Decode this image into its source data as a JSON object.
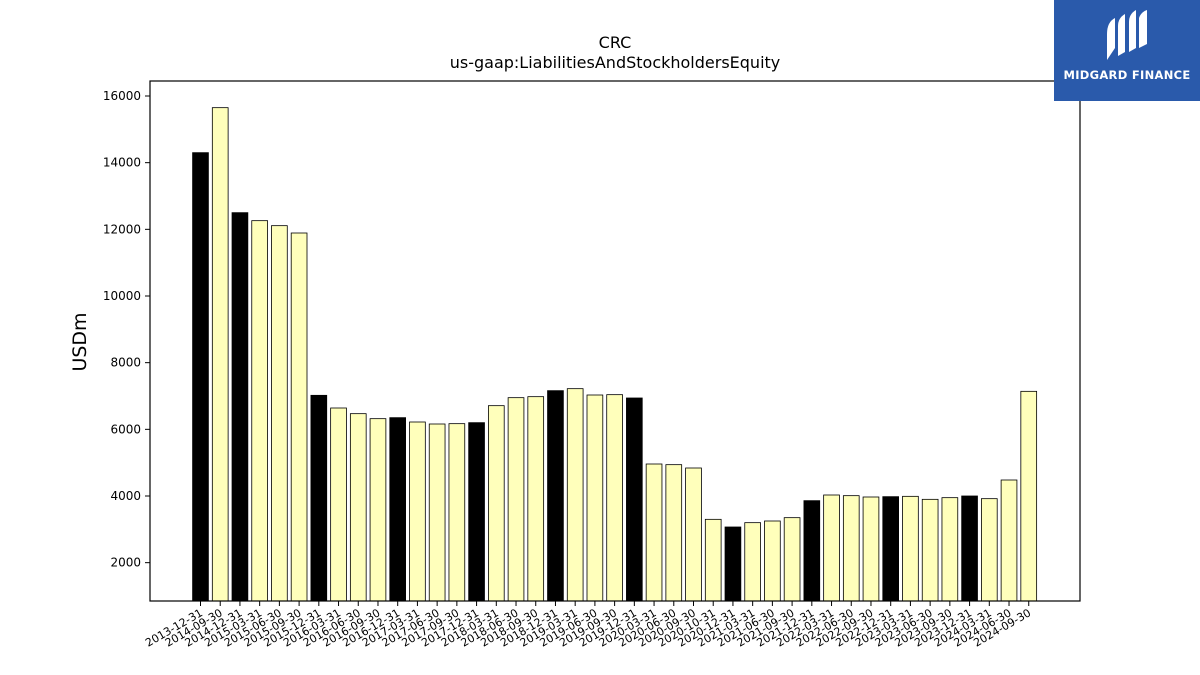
{
  "chart_data": {
    "type": "bar",
    "title": "CRC",
    "subtitle": "us-gaap:LiabilitiesAndStockholdersEquity",
    "ylabel": "USDm",
    "xlabel": "",
    "ylim": [
      850,
      16450
    ],
    "yticks": [
      2000,
      4000,
      6000,
      8000,
      10000,
      12000,
      14000,
      16000
    ],
    "categories": [
      "2013-12-31",
      "2014-09-30",
      "2014-12-31",
      "2015-03-31",
      "2015-06-30",
      "2015-09-30",
      "2015-12-31",
      "2016-03-31",
      "2016-06-30",
      "2016-09-30",
      "2016-12-31",
      "2017-03-31",
      "2017-06-30",
      "2017-09-30",
      "2017-12-31",
      "2018-03-31",
      "2018-06-30",
      "2018-09-30",
      "2018-12-31",
      "2019-03-31",
      "2019-06-30",
      "2019-09-30",
      "2019-12-31",
      "2020-03-31",
      "2020-06-30",
      "2020-09-30",
      "2020-10-31",
      "2020-12-31",
      "2021-03-31",
      "2021-06-30",
      "2021-09-30",
      "2021-12-31",
      "2022-03-31",
      "2022-06-30",
      "2022-09-30",
      "2022-12-31",
      "2023-03-31",
      "2023-06-30",
      "2023-09-30",
      "2023-12-31",
      "2024-03-31",
      "2024-06-30",
      "2024-09-30"
    ],
    "values": [
      14300,
      15650,
      12500,
      12260,
      12110,
      11890,
      7020,
      6640,
      6470,
      6320,
      6350,
      6220,
      6160,
      6170,
      6200,
      6710,
      6950,
      6980,
      7160,
      7220,
      7030,
      7040,
      6940,
      4960,
      4940,
      4840,
      3300,
      3070,
      3200,
      3250,
      3350,
      3860,
      4030,
      4010,
      3970,
      3980,
      3990,
      3900,
      3950,
      4000,
      3920,
      4480,
      7140
    ],
    "bar_colors": [
      "#000000",
      "#ffffbb",
      "#000000",
      "#ffffbb",
      "#ffffbb",
      "#ffffbb",
      "#000000",
      "#ffffbb",
      "#ffffbb",
      "#ffffbb",
      "#000000",
      "#ffffbb",
      "#ffffbb",
      "#ffffbb",
      "#000000",
      "#ffffbb",
      "#ffffbb",
      "#ffffbb",
      "#000000",
      "#ffffbb",
      "#ffffbb",
      "#ffffbb",
      "#000000",
      "#ffffbb",
      "#ffffbb",
      "#ffffbb",
      "#ffffbb",
      "#000000",
      "#ffffbb",
      "#ffffbb",
      "#ffffbb",
      "#000000",
      "#ffffbb",
      "#ffffbb",
      "#ffffbb",
      "#000000",
      "#ffffbb",
      "#ffffbb",
      "#ffffbb",
      "#000000",
      "#ffffbb",
      "#ffffbb",
      "#ffffbb"
    ],
    "grid": false,
    "legend": "none"
  },
  "brand": {
    "name": "MIDGARD FINANCE",
    "color": "#2a5aab"
  }
}
